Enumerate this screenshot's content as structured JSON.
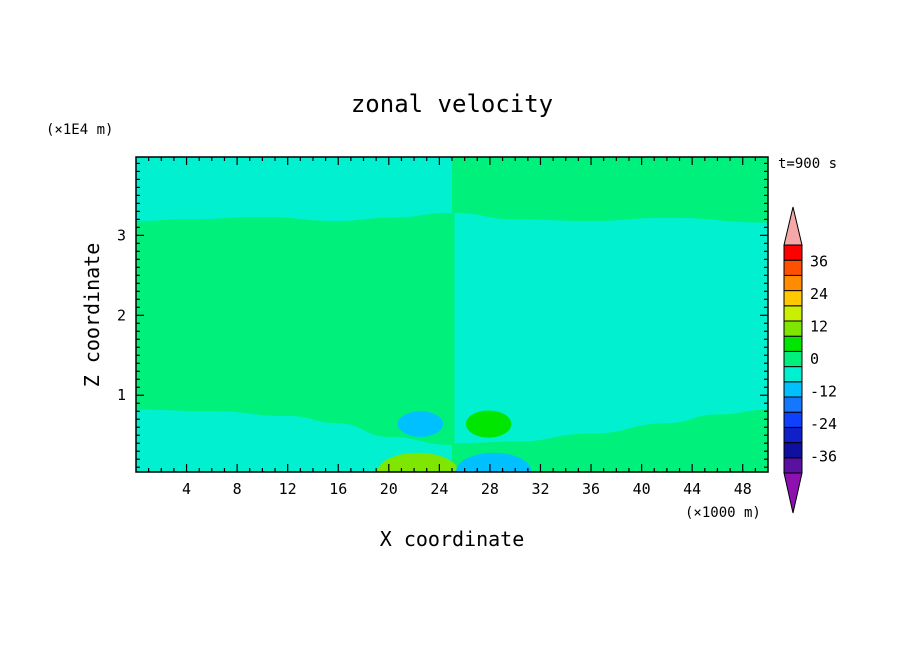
{
  "chart_data": {
    "type": "heatmap",
    "title": "zonal velocity",
    "xlabel": "X coordinate",
    "ylabel": "Z coordinate",
    "x_unit": "(×1000 m)",
    "y_unit": "(×1E4 m)",
    "time_label": "t=900 s",
    "xlim": [
      0,
      50
    ],
    "ylim": [
      0.04,
      3.98
    ],
    "x_ticks": [
      4,
      8,
      12,
      16,
      20,
      24,
      28,
      32,
      36,
      40,
      44,
      48
    ],
    "x_tick_labels": [
      "4",
      "8",
      "12",
      "16",
      "20",
      "24",
      "28",
      "32",
      "36",
      "40",
      "44",
      "48"
    ],
    "y_ticks": [
      1,
      2,
      3
    ],
    "y_tick_labels": [
      "1",
      "2",
      "3"
    ],
    "colorbar": {
      "levels": [
        -42,
        -36,
        -30,
        -24,
        -18,
        -12,
        -6,
        0,
        6,
        12,
        18,
        24,
        30,
        36,
        42
      ],
      "tick_values": [
        -36,
        -24,
        -12,
        0,
        12,
        24,
        36
      ],
      "tick_labels": [
        "-36",
        "-24",
        "-12",
        "0",
        "12",
        "24",
        "36"
      ],
      "colors": [
        "#5a10a0",
        "#1010a0",
        "#1020c8",
        "#1040ff",
        "#1478ff",
        "#00c0ff",
        "#00f0d0",
        "#00f07c",
        "#00e600",
        "#7ee600",
        "#c8f000",
        "#ffc800",
        "#ff8c00",
        "#ff5000",
        "#ff0000"
      ],
      "under_color": "#8e10b0",
      "over_color": "#f5a8a8"
    },
    "background_value": 3,
    "regions": [
      {
        "value": -3,
        "x0": 0,
        "x1": 25,
        "top": [
          [
            0,
            3.98
          ],
          [
            25,
            3.98
          ]
        ],
        "bottom": [
          [
            0,
            3.18
          ],
          [
            4,
            3.2
          ],
          [
            10,
            3.23
          ],
          [
            16,
            3.18
          ],
          [
            20,
            3.22
          ],
          [
            25,
            3.28
          ]
        ]
      },
      {
        "value": -3,
        "x0": 25.2,
        "x1": 50,
        "top": [
          [
            25.2,
            3.28
          ],
          [
            30,
            3.2
          ],
          [
            36,
            3.18
          ],
          [
            42,
            3.22
          ],
          [
            50,
            3.16
          ]
        ],
        "bottom": [
          [
            25.2,
            0.4
          ],
          [
            30,
            0.42
          ],
          [
            36,
            0.52
          ],
          [
            42,
            0.65
          ],
          [
            46,
            0.76
          ],
          [
            50,
            0.82
          ]
        ]
      },
      {
        "value": -3,
        "x0": 0,
        "x1": 25,
        "top": [
          [
            0,
            0.82
          ],
          [
            6,
            0.8
          ],
          [
            12,
            0.74
          ],
          [
            16,
            0.65
          ],
          [
            20,
            0.48
          ],
          [
            25,
            0.38
          ]
        ],
        "bottom": [
          [
            0,
            0.04
          ],
          [
            25,
            0.04
          ]
        ]
      }
    ],
    "blobs": [
      {
        "value": -9,
        "cx": 22.5,
        "cy": 0.64,
        "rx": 1.8,
        "ry": 0.16
      },
      {
        "value": 9,
        "cx": 27.9,
        "cy": 0.64,
        "rx": 1.8,
        "ry": 0.17
      },
      {
        "value": 15,
        "cx": 22.3,
        "cy": 0.04,
        "rx": 3.2,
        "ry": 0.24
      },
      {
        "value": -9,
        "cx": 28.3,
        "cy": 0.04,
        "rx": 3.0,
        "ry": 0.24
      }
    ]
  }
}
